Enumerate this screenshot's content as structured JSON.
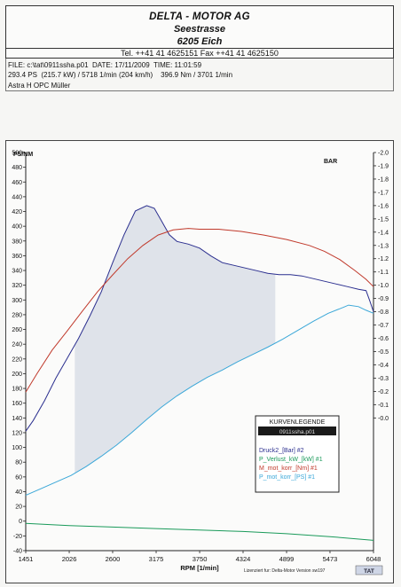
{
  "header": {
    "company": "DELTA - MOTOR AG",
    "street": "Seestrasse",
    "city": "6205 Eich",
    "contact": "Tel. ++41 41 4625151   Fax ++41 41 4625150"
  },
  "file_info": {
    "line1": "FILE: c:\\tat\\0911ssha.p01  DATE: 17/11/2009  TIME: 11:01:59",
    "line2": "293.4 PS  (215.7 kW) / 5718 1/min (204 km/h)    396.9 Nm / 3701 1/min",
    "line3": "Astra H OPC Müller"
  },
  "legend": {
    "title": "KURVENLEGENDE",
    "file": "0911ssha.p01",
    "items": [
      {
        "label": "Druck2_[Bar] #2",
        "color": "#2b2f8f"
      },
      {
        "label": "P_Verlust_kW_[kW] #1",
        "color": "#1a9a5a"
      },
      {
        "label": "M_mot_korr_[Nm] #1",
        "color": "#c0392b"
      },
      {
        "label": "P_mot_korr_[PS] #1",
        "color": "#3aa7d8"
      }
    ]
  },
  "footer": {
    "credit": "Lizenziert fur: Delta-Motor    Version sw197",
    "logo": "TAT"
  },
  "chart_data": {
    "type": "line",
    "xlabel": "RPM [1/min]",
    "ylabel_left": "PS/NM",
    "ylabel_right": "BAR",
    "xlim": [
      1451,
      6048
    ],
    "x_ticks": [
      "1451",
      "2026",
      "2600",
      "3175",
      "3750",
      "4324",
      "4899",
      "5473",
      "6048"
    ],
    "ylim_left": [
      -40,
      500
    ],
    "y_ticks_left": [
      "500",
      "480",
      "460",
      "440",
      "420",
      "400",
      "380",
      "360",
      "340",
      "320",
      "300",
      "280",
      "260",
      "240",
      "220",
      "200",
      "180",
      "160",
      "140",
      "120",
      "100",
      "80",
      "60",
      "40",
      "20",
      "0",
      "-20",
      "-40"
    ],
    "ylim_right": [
      -1.0,
      2.0
    ],
    "y_ticks_right": [
      "2.0",
      "1.9",
      "1.8",
      "1.7",
      "1.6",
      "1.5",
      "1.4",
      "1.3",
      "1.2",
      "1.1",
      "1.0",
      "0.9",
      "0.8",
      "0.7",
      "0.6",
      "0.5",
      "0.4",
      "0.3",
      "0.2",
      "0.1",
      "0.0"
    ],
    "grid": false,
    "legend_position": "right",
    "series": [
      {
        "name": "Druck2_[Bar] #2",
        "axis": "right",
        "color": "#2b2f8f",
        "x": [
          1451,
          1550,
          1700,
          1850,
          2000,
          2150,
          2300,
          2450,
          2600,
          2750,
          2900,
          3050,
          3150,
          3250,
          3350,
          3450,
          3600,
          3750,
          3900,
          4050,
          4200,
          4350,
          4500,
          4650,
          4800,
          4950,
          5100,
          5250,
          5400,
          5550,
          5700,
          5850,
          5950,
          6000,
          6048
        ],
        "y": [
          -0.1,
          -0.02,
          0.13,
          0.3,
          0.45,
          0.6,
          0.77,
          0.95,
          1.17,
          1.38,
          1.56,
          1.6,
          1.58,
          1.48,
          1.38,
          1.33,
          1.31,
          1.28,
          1.22,
          1.17,
          1.15,
          1.13,
          1.11,
          1.09,
          1.08,
          1.08,
          1.07,
          1.05,
          1.03,
          1.01,
          0.99,
          0.97,
          0.96,
          0.88,
          0.8
        ]
      },
      {
        "name": "M_mot_korr_[Nm] #1",
        "axis": "left",
        "color": "#c0392b",
        "x": [
          1451,
          1600,
          1800,
          2000,
          2200,
          2400,
          2600,
          2800,
          3000,
          3200,
          3400,
          3600,
          3750,
          4000,
          4300,
          4600,
          4900,
          5200,
          5400,
          5600,
          5800,
          5950,
          6048
        ],
        "y": [
          175,
          200,
          232,
          258,
          285,
          311,
          334,
          356,
          374,
          388,
          395,
          397,
          396,
          396,
          393,
          388,
          382,
          374,
          366,
          355,
          340,
          328,
          318
        ]
      },
      {
        "name": "P_mot_korr_[PS] #1",
        "axis": "left",
        "color": "#3aa7d8",
        "x": [
          1451,
          1650,
          1850,
          2050,
          2250,
          2450,
          2650,
          2850,
          3050,
          3250,
          3450,
          3650,
          3850,
          4050,
          4250,
          4450,
          4650,
          4850,
          5050,
          5250,
          5450,
          5650,
          5718,
          5850,
          5950,
          6048
        ],
        "y": [
          35,
          44,
          53,
          62,
          74,
          88,
          103,
          120,
          138,
          155,
          170,
          183,
          195,
          205,
          216,
          226,
          236,
          247,
          259,
          271,
          282,
          290,
          293,
          291,
          286,
          282
        ]
      },
      {
        "name": "P_Verlust_kW_[kW] #1",
        "axis": "left",
        "color": "#1a9a5a",
        "x": [
          1451,
          2026,
          2600,
          3175,
          3750,
          4324,
          4899,
          5473,
          6048
        ],
        "y": [
          -3,
          -6,
          -8,
          -10,
          -12,
          -14,
          -17,
          -21,
          -26
        ]
      }
    ]
  }
}
